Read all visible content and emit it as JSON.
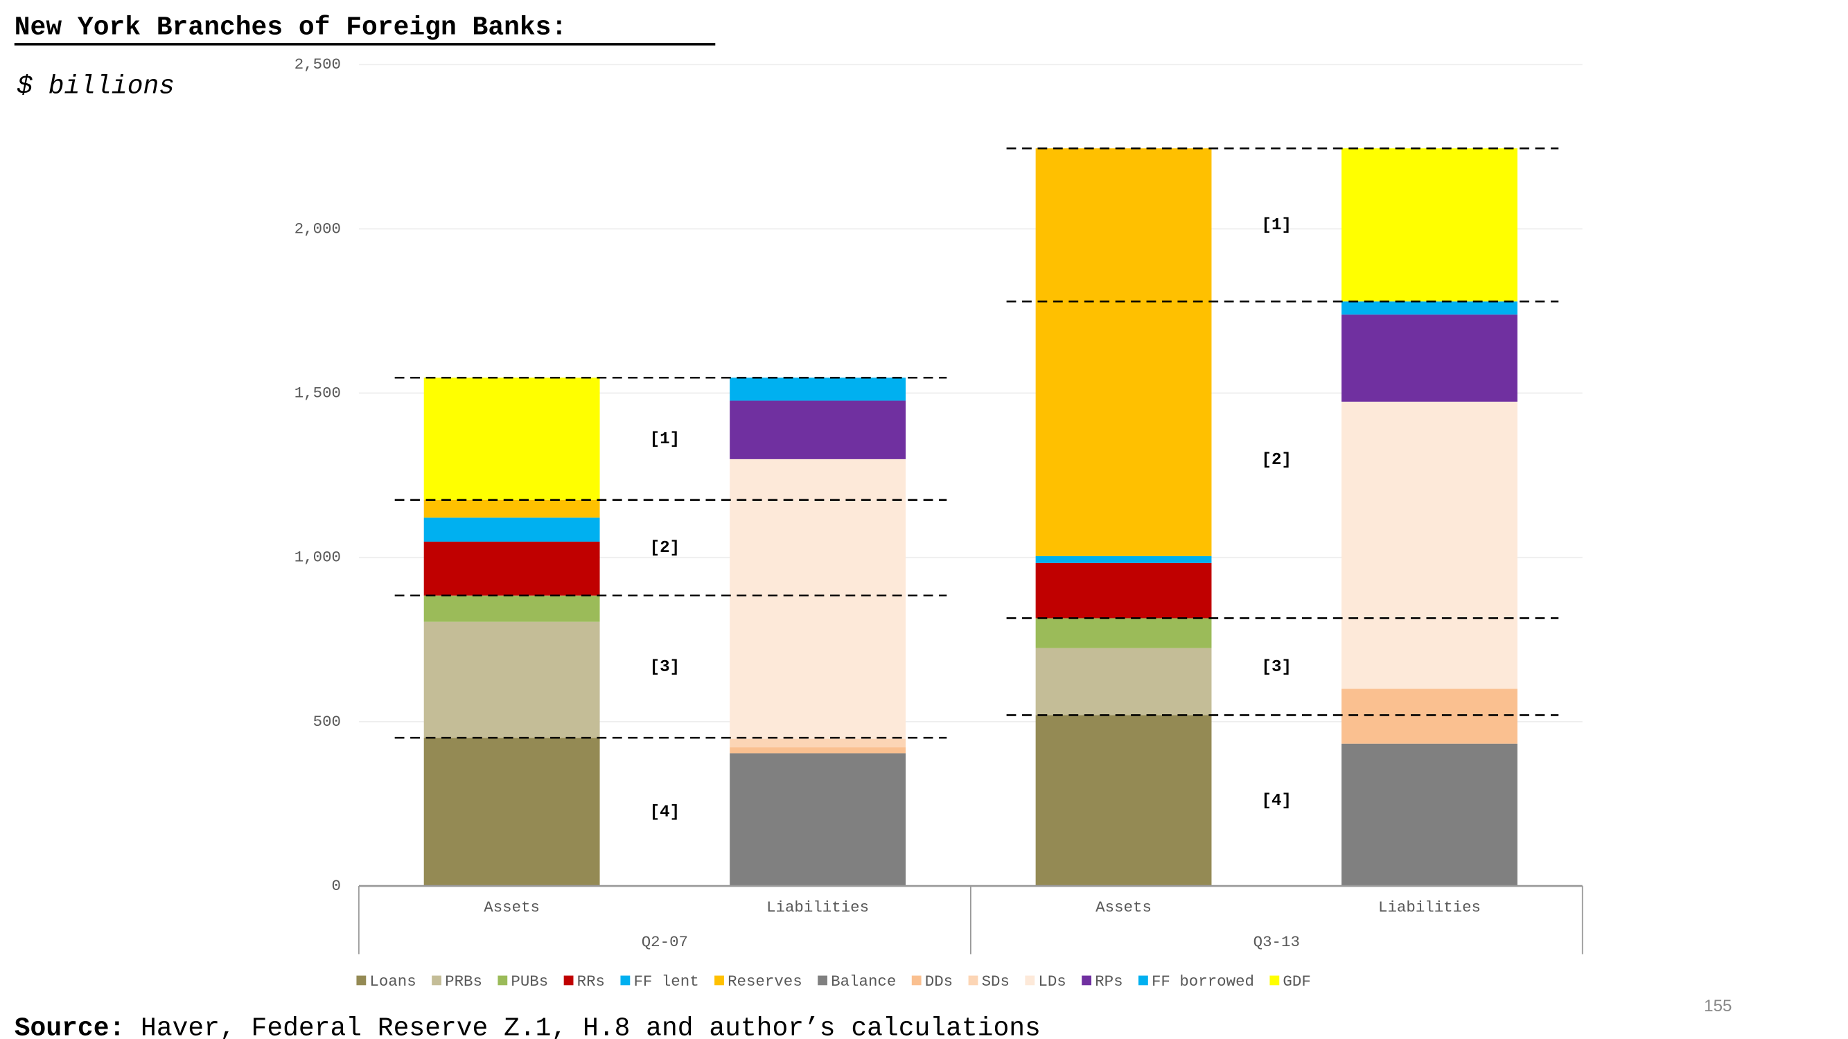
{
  "chart_data": {
    "type": "stacked-bar",
    "title": "New York Branches of Foreign Banks:",
    "subtitle": "$ billions",
    "categories": [
      "Assets",
      "Liabilities",
      "Assets",
      "Liabilities"
    ],
    "groups": [
      {
        "label": "Q2-07",
        "categories": [
          0,
          1
        ],
        "lines": [
          1547,
          1175,
          884,
          451
        ],
        "annotations": [
          "[1]",
          "[2]",
          "[3]",
          "[4]"
        ]
      },
      {
        "label": "Q3-13",
        "categories": [
          2,
          3
        ],
        "lines": [
          2245,
          1779,
          815,
          520
        ],
        "annotations": [
          "[1]",
          "[2]",
          "[3]",
          "[4]"
        ]
      }
    ],
    "series": [
      {
        "name": "Loans",
        "color": "#948A54",
        "values": [
          451,
          0,
          520,
          0
        ]
      },
      {
        "name": "PRBs",
        "color": "#C4BD97",
        "values": [
          353,
          0,
          204,
          0
        ]
      },
      {
        "name": "PUBs",
        "color": "#9BBB59",
        "values": [
          80,
          0,
          91,
          0
        ]
      },
      {
        "name": "RRs",
        "color": "#C00000",
        "values": [
          164,
          0,
          168,
          0
        ]
      },
      {
        "name": "FF lent",
        "color": "#00B0F0",
        "values": [
          73,
          0,
          21,
          0
        ]
      },
      {
        "name": "Reserves",
        "color": "#FFC000",
        "values": [
          54,
          0,
          1241,
          0
        ]
      },
      {
        "name": "Balance",
        "color": "#808080",
        "values": [
          0,
          404,
          0,
          433
        ]
      },
      {
        "name": "DDs",
        "color": "#FAC090",
        "values": [
          0,
          18,
          0,
          167
        ]
      },
      {
        "name": "SDs",
        "color": "#FCD5B5",
        "values": [
          0,
          26,
          0,
          0
        ]
      },
      {
        "name": "LDs",
        "color": "#FDE9D9",
        "values": [
          0,
          851,
          0,
          874
        ]
      },
      {
        "name": "RPs",
        "color": "#7030A0",
        "values": [
          0,
          178,
          0,
          265
        ]
      },
      {
        "name": "FF borrowed",
        "color": "#00B0F0",
        "values": [
          0,
          70,
          0,
          40
        ]
      },
      {
        "name": "GDF",
        "color": "#FFFF00",
        "values": [
          372,
          0,
          0,
          466
        ]
      }
    ],
    "ylim": [
      0,
      2500
    ],
    "yticks": [
      0,
      500,
      {
        "value": 1000,
        "label": "1,000"
      },
      {
        "value": 1500,
        "label": "1,500"
      },
      {
        "value": 2000,
        "label": "2,000"
      },
      {
        "value": 2500,
        "label": "2,500"
      }
    ],
    "grid": true,
    "legend": "bottom",
    "source": {
      "label": "Source:",
      "text": " Haver, Federal Reserve Z.1, H.8 and author’s calculations"
    },
    "page_number": "155"
  }
}
